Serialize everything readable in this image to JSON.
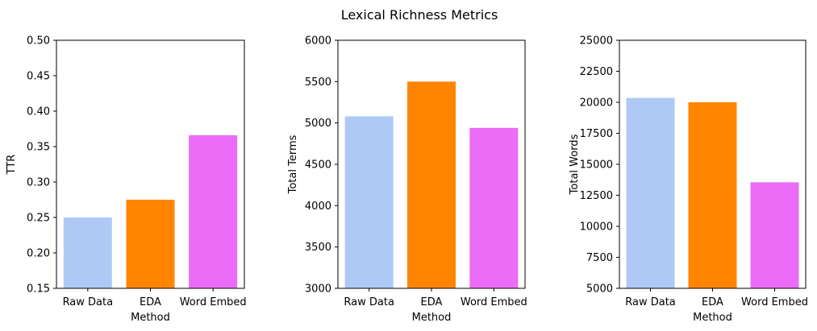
{
  "figure": {
    "suptitle": "Lexical Richness Metrics"
  },
  "colors": {
    "Raw Data": "#aec9f5",
    "EDA": "#ff8400",
    "Word Embed": "#eb6cf7"
  },
  "chart_data": [
    {
      "type": "bar",
      "title": "",
      "xlabel": "Method",
      "ylabel": "TTR",
      "categories": [
        "Raw Data",
        "EDA",
        "Word Embed"
      ],
      "values": [
        0.25,
        0.275,
        0.366
      ],
      "ylim": [
        0.15,
        0.5
      ],
      "yticks": [
        "0.15",
        "0.20",
        "0.25",
        "0.30",
        "0.35",
        "0.40",
        "0.45",
        "0.50"
      ],
      "ytick_values": [
        0.15,
        0.2,
        0.25,
        0.3,
        0.35,
        0.4,
        0.45,
        0.5
      ],
      "grid": false
    },
    {
      "type": "bar",
      "title": "",
      "xlabel": "Method",
      "ylabel": "Total Terms",
      "categories": [
        "Raw Data",
        "EDA",
        "Word Embed"
      ],
      "values": [
        5080,
        5500,
        4940
      ],
      "ylim": [
        3000,
        6000
      ],
      "yticks": [
        "3000",
        "3500",
        "4000",
        "4500",
        "5000",
        "5500",
        "6000"
      ],
      "ytick_values": [
        3000,
        3500,
        4000,
        4500,
        5000,
        5500,
        6000
      ],
      "grid": false
    },
    {
      "type": "bar",
      "title": "",
      "xlabel": "Method",
      "ylabel": "Total Words",
      "categories": [
        "Raw Data",
        "EDA",
        "Word Embed"
      ],
      "values": [
        20350,
        20000,
        13550
      ],
      "ylim": [
        5000,
        25000
      ],
      "yticks": [
        "5000",
        "7500",
        "10000",
        "12500",
        "15000",
        "17500",
        "20000",
        "22500",
        "25000"
      ],
      "ytick_values": [
        5000,
        7500,
        10000,
        12500,
        15000,
        17500,
        20000,
        22500,
        25000
      ],
      "grid": false
    }
  ]
}
